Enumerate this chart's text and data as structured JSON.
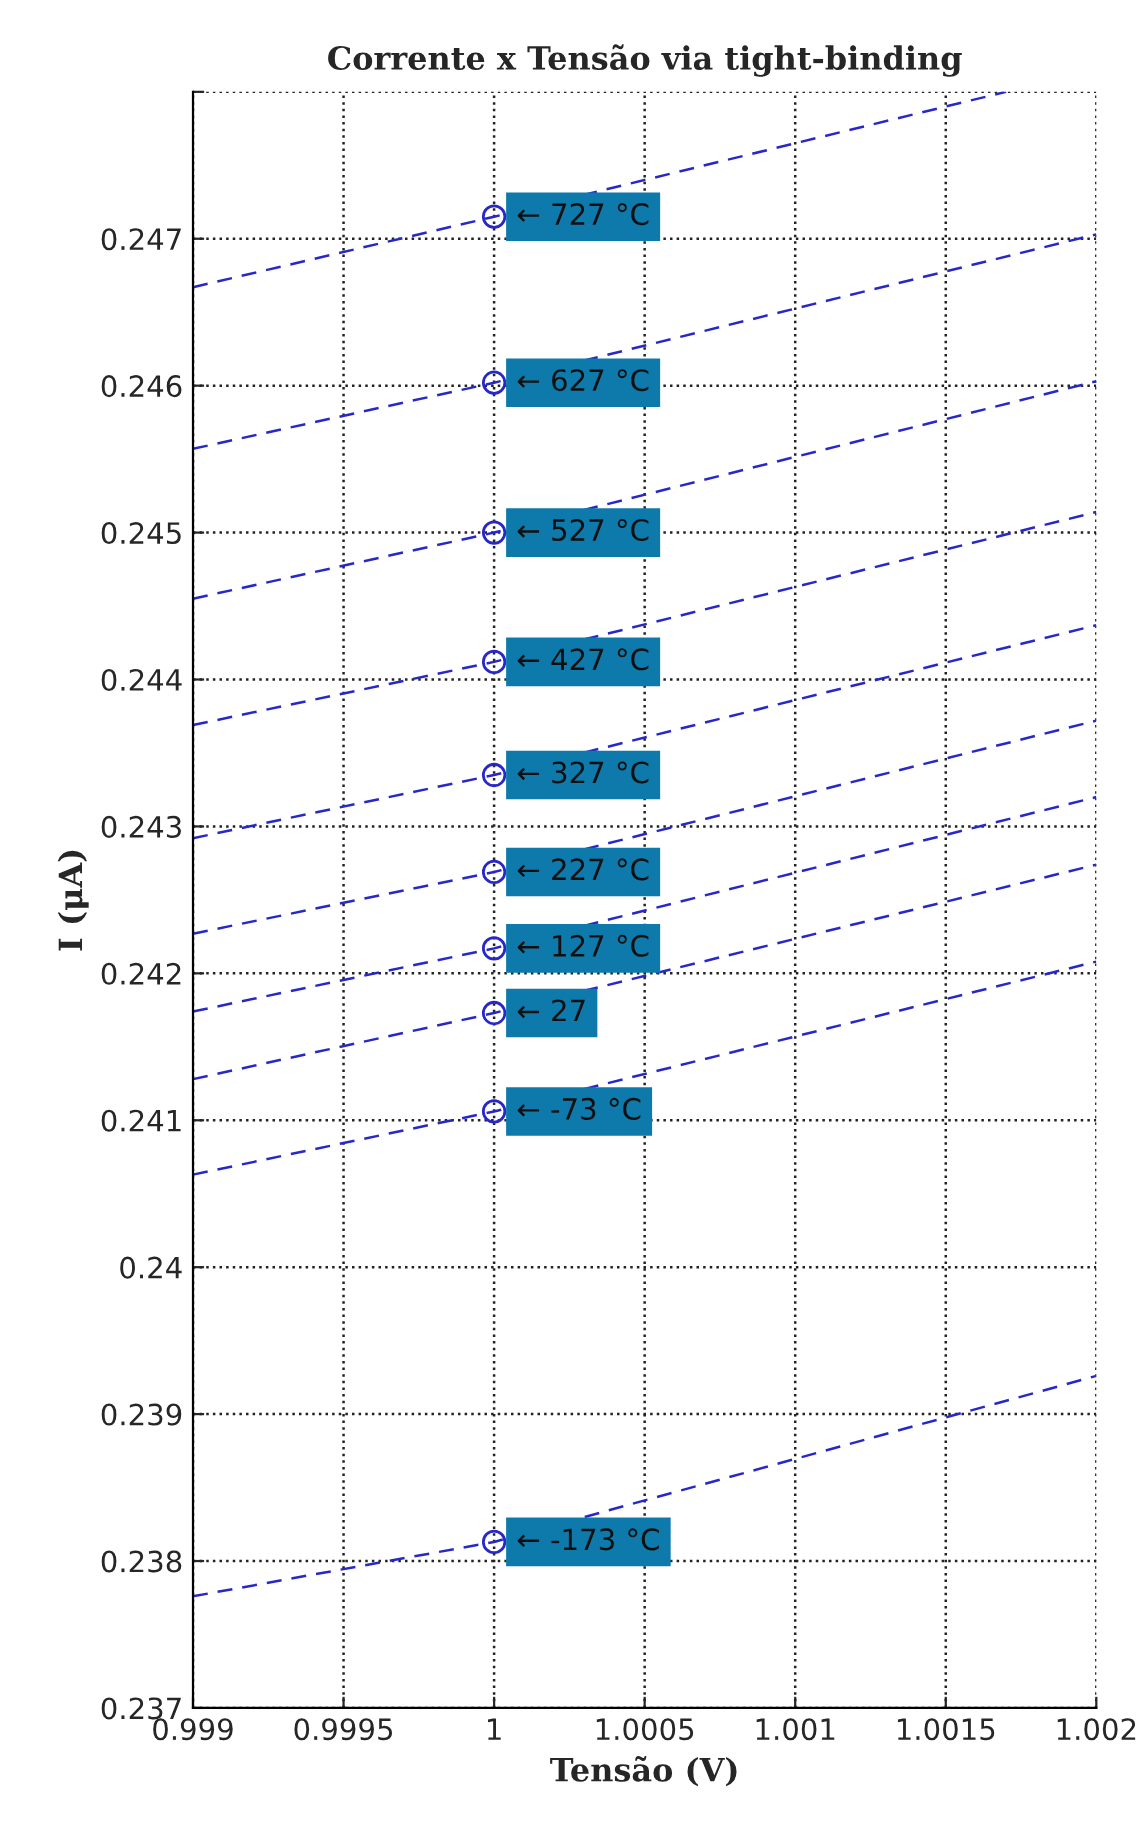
{
  "chart_data": {
    "type": "line",
    "title": "Corrente x Tensão via tight-binding",
    "xlabel": "Tensão (V)",
    "ylabel": "I (μA)",
    "xlim": [
      0.999,
      1.002
    ],
    "xticks": [
      0.999,
      0.9995,
      1,
      1.0005,
      1.001,
      1.0015,
      1.002
    ],
    "ylim": [
      0.237,
      0.248
    ],
    "yticks": [
      0.237,
      0.238,
      0.239,
      0.24,
      0.241,
      0.242,
      0.243,
      0.244,
      0.245,
      0.246,
      0.247,
      {
        "value": 0.248,
        "label": null
      }
    ],
    "grid": true,
    "legend": false,
    "line_style": "dashed",
    "marker": "none",
    "series": [
      {
        "color": "#2828c8",
        "x": [
          0.999,
          1,
          1.0017
        ],
        "values": [
          0.24667,
          0.24715,
          0.248
        ]
      },
      {
        "color": "#2828c8",
        "x": [
          0.999,
          1,
          1.002
        ],
        "values": [
          0.24557,
          0.24602,
          0.24703
        ]
      },
      {
        "color": "#2828c8",
        "x": [
          0.999,
          1,
          1.002
        ],
        "values": [
          0.24455,
          0.245,
          0.24603
        ]
      },
      {
        "color": "#2828c8",
        "x": [
          0.999,
          1,
          1.002
        ],
        "values": [
          0.24369,
          0.24412,
          0.24514
        ]
      },
      {
        "color": "#2828c8",
        "x": [
          0.999,
          1,
          1.002
        ],
        "values": [
          0.24292,
          0.24335,
          0.24437
        ]
      },
      {
        "color": "#2828c8",
        "x": [
          0.999,
          1,
          1.002
        ],
        "values": [
          0.24227,
          0.24269,
          0.24372
        ]
      },
      {
        "color": "#2828c8",
        "x": [
          0.999,
          1,
          1.002
        ],
        "values": [
          0.24174,
          0.24217,
          0.2432
        ]
      },
      {
        "color": "#2828c8",
        "x": [
          0.999,
          1,
          1.002
        ],
        "values": [
          0.24128,
          0.24173,
          0.24274
        ]
      },
      {
        "color": "#2828c8",
        "x": [
          0.999,
          1,
          1.002
        ],
        "values": [
          0.24063,
          0.24106,
          0.24208
        ]
      },
      {
        "color": "#2828c8",
        "x": [
          0.999,
          1,
          1.002
        ],
        "values": [
          0.23776,
          0.23813,
          0.23926
        ]
      },
      {
        "type": "scatter",
        "marker": "circle",
        "color": "#2828c8",
        "x": [
          1,
          1,
          1,
          1,
          1,
          1,
          1,
          1,
          1,
          1
        ],
        "values": [
          0.24715,
          0.24602,
          0.245,
          0.24412,
          0.24335,
          0.24269,
          0.24217,
          0.24173,
          0.24106,
          0.23813
        ]
      }
    ],
    "annotations": [
      "← 727 °C",
      "← 627 °C",
      "← 527 °C",
      "← 427 °C",
      "← 327 °C",
      "← 227 °C",
      "← 127 °C",
      "← 27",
      "← -73 °C",
      "← -173 °C"
    ]
  }
}
